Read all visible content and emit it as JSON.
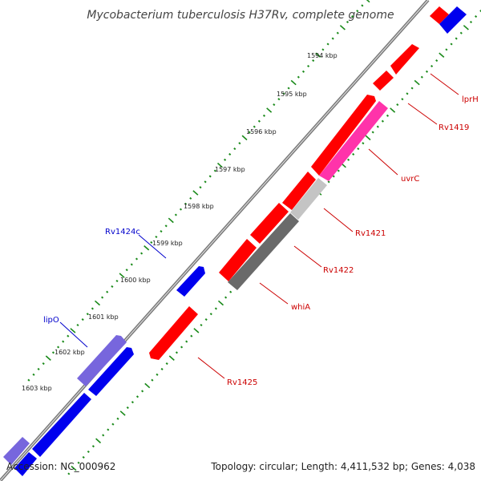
{
  "title": "Mycobacterium tuberculosis H37Rv, complete genome",
  "footer": {
    "accession": "Accession: NC_000962",
    "summary": "Topology: circular; Length: 4,411,532 bp; Genes: 4,038"
  },
  "colors": {
    "backbone": "#7a7a7a",
    "ticks": "#1a8a1a",
    "forward": "#ff0000",
    "reverse": "#0000ee",
    "magenta": "#ff33aa",
    "grey_dark": "#6a6a6a",
    "grey_light": "#c4c4c4",
    "reverse_light": "#7766dd",
    "label_forward": "#cc0000",
    "label_reverse": "#0000cc"
  },
  "kbp_labels": [
    "1594 kbp",
    "1595 kbp",
    "1596 kbp",
    "1597 kbp",
    "1598 kbp",
    "1599 kbp",
    "1600 kbp",
    "1601 kbp",
    "1602 kbp",
    "1603 kbp"
  ],
  "gene_labels": [
    {
      "name": "lprH",
      "strand": "forward"
    },
    {
      "name": "Rv1419",
      "strand": "forward"
    },
    {
      "name": "uvrC",
      "strand": "forward"
    },
    {
      "name": "Rv1421",
      "strand": "forward"
    },
    {
      "name": "Rv1422",
      "strand": "forward"
    },
    {
      "name": "whiA",
      "strand": "forward"
    },
    {
      "name": "Rv1425",
      "strand": "forward"
    },
    {
      "name": "Rv1424c",
      "strand": "reverse"
    },
    {
      "name": "lipO",
      "strand": "reverse"
    }
  ]
}
